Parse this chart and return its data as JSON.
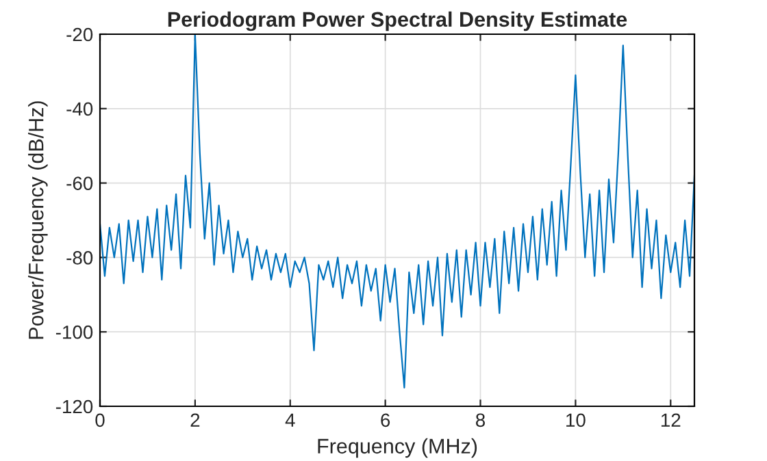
{
  "chart_data": {
    "type": "line",
    "title": "Periodogram Power Spectral Density Estimate",
    "xlabel": "Frequency (MHz)",
    "ylabel": "Power/Frequency (dB/Hz)",
    "x": [
      0,
      0.1,
      0.2,
      0.3,
      0.4,
      0.5,
      0.6,
      0.7,
      0.8,
      0.9,
      1.0,
      1.1,
      1.2,
      1.3,
      1.4,
      1.5,
      1.6,
      1.7,
      1.8,
      1.9,
      2.0,
      2.1,
      2.2,
      2.3,
      2.4,
      2.5,
      2.6,
      2.7,
      2.8,
      2.9,
      3.0,
      3.1,
      3.2,
      3.3,
      3.4,
      3.5,
      3.6,
      3.7,
      3.8,
      3.9,
      4.0,
      4.1,
      4.2,
      4.3,
      4.4,
      4.5,
      4.6,
      4.7,
      4.8,
      4.9,
      5.0,
      5.1,
      5.2,
      5.3,
      5.4,
      5.5,
      5.6,
      5.7,
      5.8,
      5.9,
      6.0,
      6.1,
      6.2,
      6.3,
      6.4,
      6.5,
      6.6,
      6.7,
      6.8,
      6.9,
      7.0,
      7.1,
      7.2,
      7.3,
      7.4,
      7.5,
      7.6,
      7.7,
      7.8,
      7.9,
      8.0,
      8.1,
      8.2,
      8.3,
      8.4,
      8.5,
      8.6,
      8.7,
      8.8,
      8.9,
      9.0,
      9.1,
      9.2,
      9.3,
      9.4,
      9.5,
      9.6,
      9.7,
      9.8,
      9.9,
      10.0,
      10.1,
      10.2,
      10.3,
      10.4,
      10.5,
      10.6,
      10.7,
      10.8,
      10.9,
      11.0,
      11.1,
      11.2,
      11.3,
      11.4,
      11.5,
      11.6,
      11.7,
      11.8,
      11.9,
      12.0,
      12.1,
      12.2,
      12.3,
      12.4,
      12.5
    ],
    "series": [
      {
        "color": "#0072bd",
        "values": [
          -71,
          -85,
          -72,
          -80,
          -71,
          -87,
          -70,
          -81,
          -70,
          -84,
          -69,
          -80,
          -67,
          -86,
          -66,
          -78,
          -63,
          -83,
          -58,
          -72,
          -20,
          -52,
          -75,
          -60,
          -82,
          -66,
          -79,
          -70,
          -84,
          -73,
          -80,
          -75,
          -86,
          -77,
          -83,
          -78,
          -86,
          -79,
          -84,
          -79,
          -88,
          -81,
          -84,
          -80,
          -87,
          -105,
          -82,
          -86,
          -81,
          -88,
          -80,
          -91,
          -82,
          -87,
          -81,
          -93,
          -82,
          -89,
          -83,
          -97,
          -82,
          -92,
          -83,
          -100,
          -115,
          -84,
          -95,
          -82,
          -98,
          -81,
          -93,
          -80,
          -101,
          -79,
          -92,
          -78,
          -96,
          -78,
          -90,
          -76,
          -93,
          -76,
          -88,
          -75,
          -95,
          -73,
          -87,
          -72,
          -89,
          -71,
          -84,
          -69,
          -86,
          -67,
          -82,
          -65,
          -85,
          -62,
          -78,
          -55,
          -31,
          -57,
          -80,
          -63,
          -85,
          -62,
          -84,
          -59,
          -76,
          -52,
          -23,
          -53,
          -80,
          -62,
          -88,
          -67,
          -83,
          -70,
          -91,
          -74,
          -84,
          -76,
          -88,
          -70,
          -85,
          -58
        ]
      }
    ],
    "xlim": [
      0,
      12.5
    ],
    "ylim": [
      -120,
      -20
    ],
    "xticks": [
      0,
      2,
      4,
      6,
      8,
      10,
      12
    ],
    "yticks": [
      -120,
      -100,
      -80,
      -60,
      -40,
      -20
    ],
    "grid": true,
    "legend": false,
    "marker": "none",
    "line_style": "solid"
  }
}
